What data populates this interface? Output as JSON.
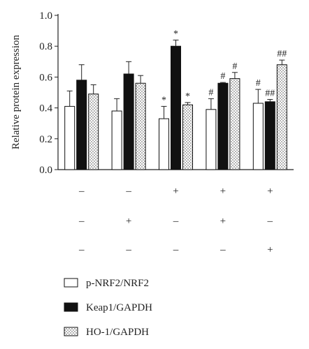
{
  "chart_data": {
    "type": "bar",
    "ylabel": "Relative protein expression",
    "ylim": [
      0.0,
      1.0
    ],
    "yticks": [
      "0.0",
      "0.2",
      "0.4",
      "0.6",
      "0.8",
      "1.0"
    ],
    "group_count": 5,
    "series": [
      {
        "name": "p-NRF2/NRF2",
        "fill": "white",
        "values": [
          0.41,
          0.38,
          0.33,
          0.39,
          0.43
        ],
        "errors": [
          0.1,
          0.08,
          0.08,
          0.07,
          0.09
        ],
        "annotations": [
          "",
          "",
          "*",
          "#",
          "#"
        ]
      },
      {
        "name": "Keap1/GAPDH",
        "fill": "black",
        "values": [
          0.58,
          0.62,
          0.8,
          0.56,
          0.44
        ],
        "errors": [
          0.1,
          0.08,
          0.04,
          0.005,
          0.015
        ],
        "annotations": [
          "",
          "",
          "*",
          "#",
          "##"
        ]
      },
      {
        "name": "HO-1/GAPDH",
        "fill": "dots",
        "values": [
          0.49,
          0.56,
          0.42,
          0.59,
          0.68
        ],
        "errors": [
          0.06,
          0.05,
          0.015,
          0.04,
          0.03
        ],
        "annotations": [
          "",
          "",
          "*",
          "#",
          "##"
        ]
      }
    ],
    "treatment_rows": [
      [
        "–",
        "–",
        "+",
        "+",
        "+"
      ],
      [
        "–",
        "+",
        "–",
        "+",
        "–"
      ],
      [
        "–",
        "–",
        "–",
        "–",
        "+"
      ]
    ],
    "legend_position": "bottom-left"
  },
  "colors": {
    "axis": "#222222",
    "bar_stroke": "#111111",
    "black_bar": "#111111",
    "dot": "#444444"
  }
}
